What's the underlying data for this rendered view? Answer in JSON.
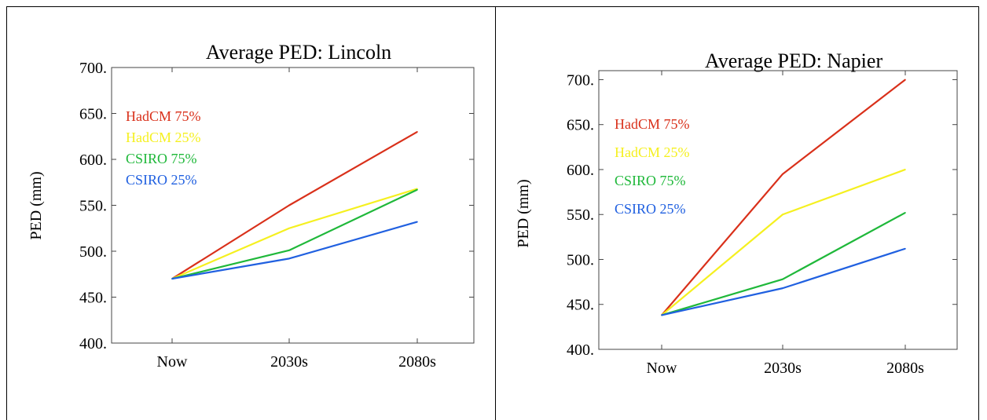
{
  "chart_data": [
    {
      "type": "line",
      "title": "Average PED: Lincoln",
      "ylabel": "PED (mm)",
      "xlabel": "",
      "categories": [
        "Now",
        "2030s",
        "2080s"
      ],
      "y_ticks": [
        "400.",
        "450.",
        "500.",
        "550.",
        "600.",
        "650.",
        "700."
      ],
      "ylim": [
        400,
        700
      ],
      "grid": false,
      "legend_position": "top-left",
      "series": [
        {
          "name": "HadCM 75%",
          "color": "#d9301a",
          "values": [
            470,
            550,
            630
          ]
        },
        {
          "name": "HadCM 25%",
          "color": "#f5f020",
          "values": [
            470,
            525,
            568
          ]
        },
        {
          "name": "CSIRO 75%",
          "color": "#1fb83a",
          "values": [
            470,
            501,
            567
          ]
        },
        {
          "name": "CSIRO 25%",
          "color": "#2060e0",
          "values": [
            470,
            492,
            532
          ]
        }
      ]
    },
    {
      "type": "line",
      "title": "Average PED: Napier",
      "ylabel": "PED (mm)",
      "xlabel": "",
      "categories": [
        "Now",
        "2030s",
        "2080s"
      ],
      "y_ticks": [
        "400.",
        "450.",
        "500.",
        "550.",
        "600.",
        "650.",
        "700."
      ],
      "ylim": [
        400,
        710
      ],
      "grid": false,
      "legend_position": "top-left",
      "series": [
        {
          "name": "HadCM 75%",
          "color": "#d9301a",
          "values": [
            438,
            595,
            700
          ]
        },
        {
          "name": "HadCM 25%",
          "color": "#f5f020",
          "values": [
            438,
            550,
            600
          ]
        },
        {
          "name": "CSIRO 75%",
          "color": "#1fb83a",
          "values": [
            438,
            478,
            552
          ]
        },
        {
          "name": "CSIRO 25%",
          "color": "#2060e0",
          "values": [
            438,
            468,
            512
          ]
        }
      ]
    }
  ]
}
